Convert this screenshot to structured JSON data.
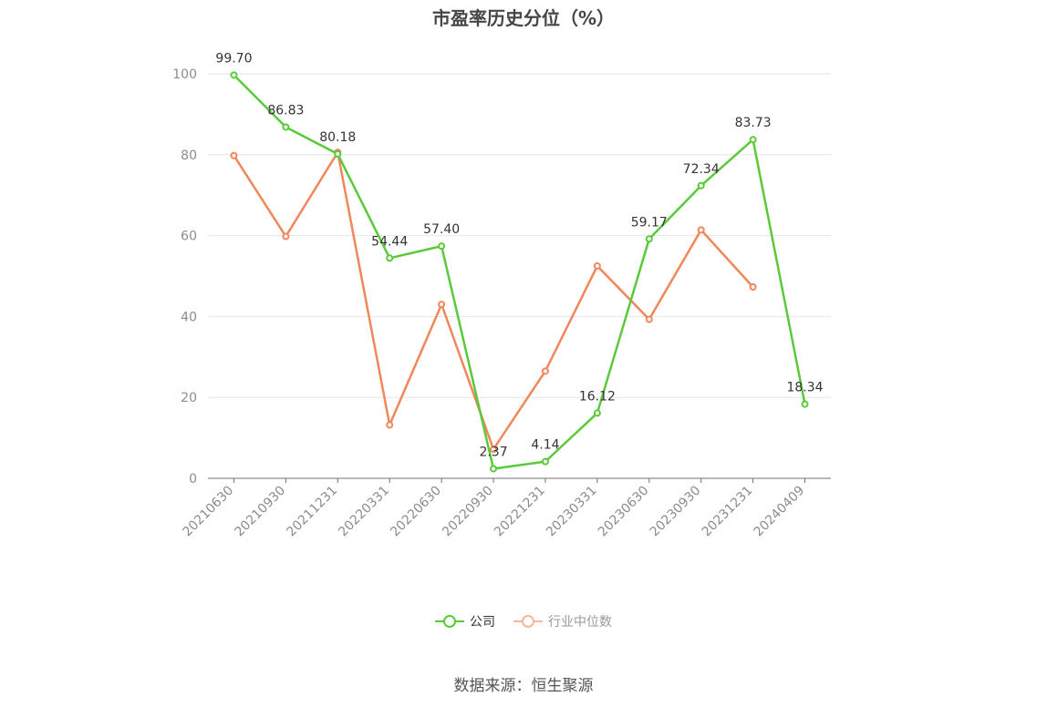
{
  "chart_data": {
    "type": "line",
    "title": "市盈率历史分位（%）",
    "categories": [
      "20210630",
      "20210930",
      "20211231",
      "20220331",
      "20220630",
      "20220930",
      "20221231",
      "20230331",
      "20230630",
      "20230930",
      "20231231",
      "20240409"
    ],
    "ylim": [
      0,
      100
    ],
    "yticks": [
      0,
      20,
      40,
      60,
      80,
      100
    ],
    "grid": true,
    "legend_position": "bottom",
    "series": [
      {
        "name": "公司",
        "color": "#5ac93a",
        "show_labels": true,
        "values": [
          99.7,
          86.83,
          80.18,
          54.44,
          57.4,
          2.37,
          4.14,
          16.12,
          59.17,
          72.34,
          83.73,
          18.34
        ],
        "labels": [
          "99.70",
          "86.83",
          "80.18",
          "54.44",
          "57.40",
          "2.37",
          "4.14",
          "16.12",
          "59.17",
          "72.34",
          "83.73",
          "18.34"
        ]
      },
      {
        "name": "行业中位数",
        "color": "#f0875a",
        "show_labels": false,
        "values": [
          79.8,
          59.8,
          80.6,
          13.2,
          43.0,
          7.2,
          26.5,
          52.5,
          39.3,
          61.4,
          47.3,
          null
        ]
      }
    ]
  },
  "legend": {
    "items": [
      {
        "label": "公司",
        "color": "#5ac93a",
        "text_color": "#333333"
      },
      {
        "label": "行业中位数",
        "color": "#f7b79c",
        "text_color": "#999999"
      }
    ]
  },
  "source": "数据来源：恒生聚源"
}
